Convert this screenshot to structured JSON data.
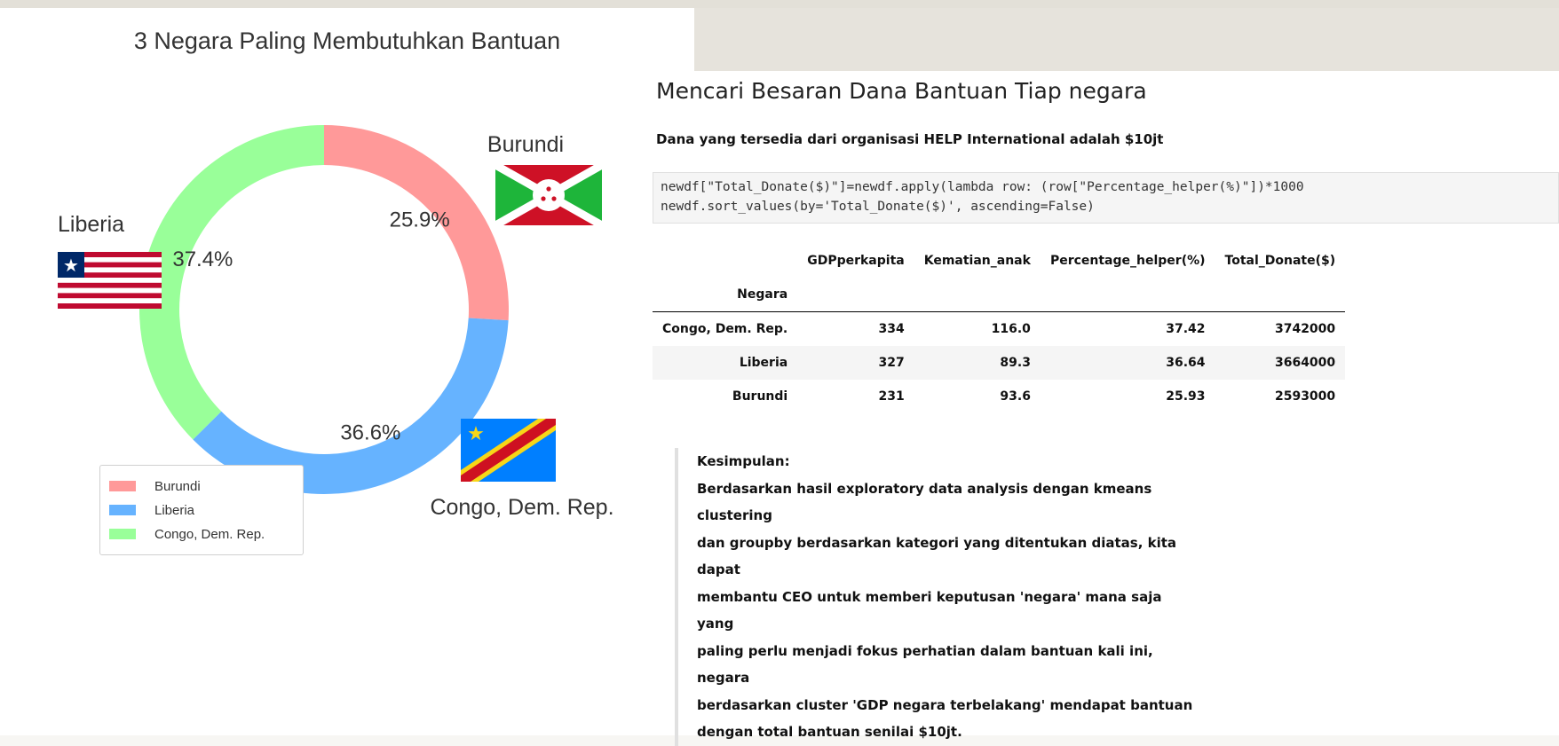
{
  "chart_data": {
    "type": "pie",
    "title": "3 Negara Paling Membutuhkan Bantuan",
    "labels": [
      "Burundi",
      "Liberia",
      "Congo, Dem. Rep."
    ],
    "values": [
      25.9,
      36.6,
      37.4
    ],
    "value_labels": [
      "25.9%",
      "36.6%",
      "37.4%"
    ],
    "colors": [
      "#ff9999",
      "#66b3ff",
      "#99ff99"
    ],
    "donut": true,
    "legend": {
      "placement": "lower-left",
      "entries": [
        "Burundi",
        "Liberia",
        "Congo, Dem. Rep."
      ]
    }
  },
  "notebook": {
    "heading": "Mencari Besaran Dana Bantuan Tiap negara",
    "subheading": "Dana yang tersedia dari organisasi HELP International adalah $10jt",
    "code_lines": [
      "newdf[\"Total_Donate($)\"]=newdf.apply(lambda row: (row[\"Percentage_helper(%)\"])*1000",
      "newdf.sort_values(by='Total_Donate($)', ascending=False)"
    ],
    "table": {
      "columns": [
        "GDPperkapita",
        "Kematian_anak",
        "Percentage_helper(%)",
        "Total_Donate($)"
      ],
      "index_name": "Negara",
      "rows": [
        {
          "index": "Congo, Dem. Rep.",
          "values": [
            "334",
            "116.0",
            "37.42",
            "3742000"
          ]
        },
        {
          "index": "Liberia",
          "values": [
            "327",
            "89.3",
            "36.64",
            "3664000"
          ]
        },
        {
          "index": "Burundi",
          "values": [
            "231",
            "93.6",
            "25.93",
            "2593000"
          ]
        }
      ]
    },
    "conclusion": {
      "title": "Kesimpulan:",
      "lines": [
        "Berdasarkan hasil exploratory data analysis dengan kmeans clustering",
        "dan groupby berdasarkan kategori yang ditentukan diatas, kita dapat",
        "membantu CEO untuk memberi keputusan 'negara' mana saja yang",
        "paling perlu menjadi fokus perhatian dalam bantuan kali ini, negara",
        "berdasarkan cluster 'GDP negara terbelakang' mendapat bantuan",
        "dengan total bantuan senilai $10jt."
      ]
    }
  }
}
